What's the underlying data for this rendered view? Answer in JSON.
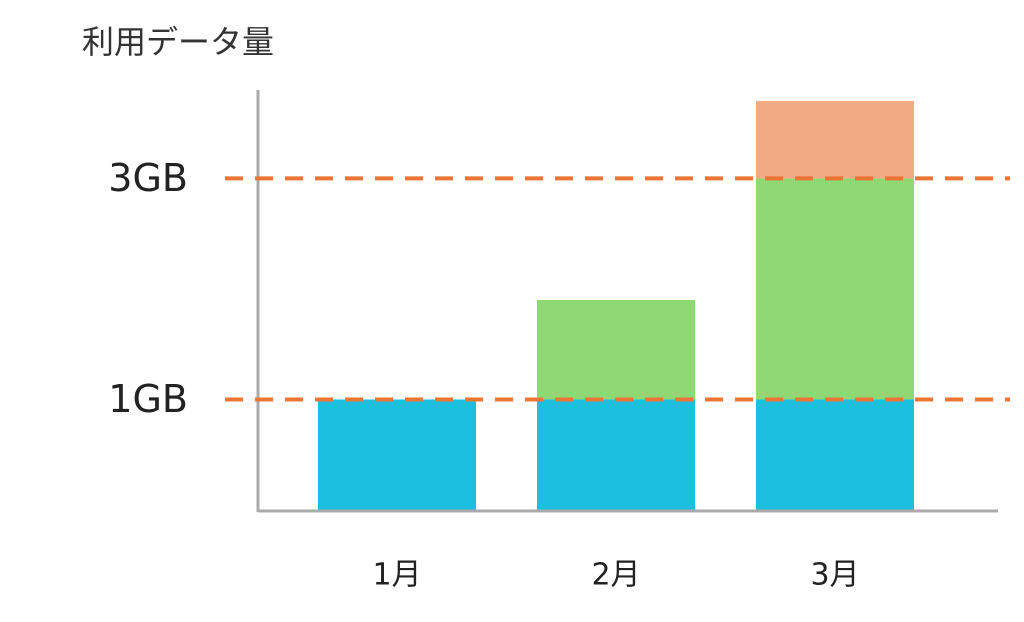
{
  "chart_data": {
    "type": "bar",
    "stacked": true,
    "title": "利用データ量",
    "categories": [
      "1月",
      "2月",
      "3月"
    ],
    "series": [
      {
        "color": "#1dbfdf",
        "values": [
          1,
          1,
          1
        ]
      },
      {
        "color": "#8fd974",
        "values": [
          0,
          0.9,
          2
        ]
      },
      {
        "color": "#f1aa84",
        "values": [
          0,
          0,
          0.7
        ]
      }
    ],
    "ylim": [
      0,
      3.8
    ],
    "yticks": [
      {
        "value": 1,
        "label": "1GB"
      },
      {
        "value": 3,
        "label": "3GB"
      }
    ],
    "grid": true,
    "grid_color": "#ec7434"
  }
}
